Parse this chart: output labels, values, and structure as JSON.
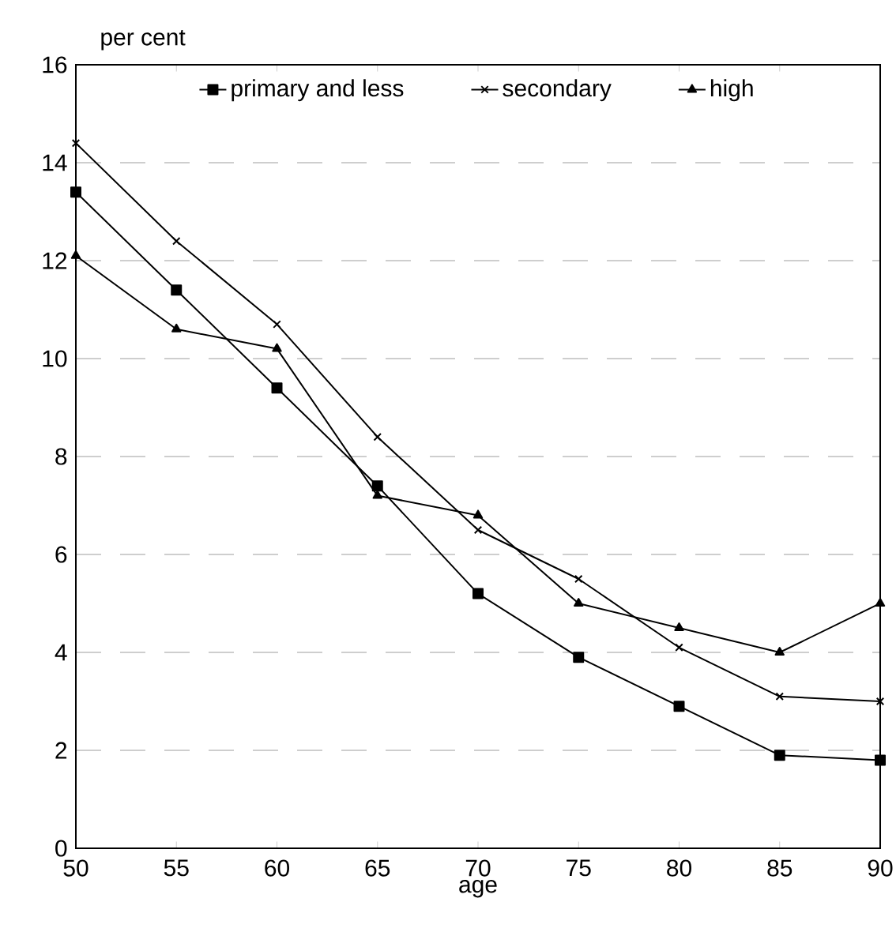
{
  "chart_data": {
    "type": "line",
    "xlabel": "age",
    "ylabel": "per cent",
    "x": [
      50,
      55,
      60,
      65,
      70,
      75,
      80,
      85,
      90
    ],
    "series": [
      {
        "name": "primary and less",
        "color": "#000000",
        "marker": "square",
        "values": [
          13.4,
          11.4,
          9.4,
          7.4,
          5.2,
          3.9,
          2.9,
          1.9,
          1.8
        ]
      },
      {
        "name": "secondary",
        "color": "#000000",
        "marker": "cross",
        "values": [
          14.4,
          12.4,
          10.7,
          8.4,
          6.5,
          5.5,
          4.1,
          3.1,
          3.0
        ]
      },
      {
        "name": "high",
        "color": "#000000",
        "marker": "triangle",
        "values": [
          12.1,
          10.6,
          10.2,
          7.2,
          6.8,
          5.0,
          4.5,
          4.0,
          5.0
        ]
      }
    ],
    "xlim": [
      50,
      90
    ],
    "ylim": [
      0,
      16
    ],
    "xticks": [
      50,
      55,
      60,
      65,
      70,
      75,
      80,
      85,
      90
    ],
    "yticks": [
      0,
      2,
      4,
      6,
      8,
      10,
      12,
      14,
      16
    ],
    "grid": "y",
    "legend": "top",
    "line_style": "solid"
  }
}
